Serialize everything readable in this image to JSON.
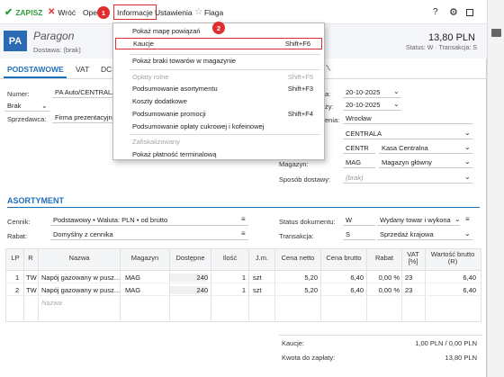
{
  "toolbar": {
    "save": "ZAPISZ",
    "back": "Wróć",
    "operations": "Opera",
    "information": "Informacje",
    "settings": "Ustawienia",
    "flag": "Flaga",
    "help": "?"
  },
  "badges": {
    "one": "1",
    "two": "2"
  },
  "header": {
    "code": "PA",
    "title": "Paragon",
    "subtitle": "Dostawa: (brak)",
    "amount": "13,80 PLN",
    "status": "Status: W · Transakcja: S"
  },
  "tabs": [
    "PODSTAWOWE",
    "VAT",
    "DC"
  ],
  "left_form": {
    "number_label": "Numer:",
    "number_value": "PA Auto/CENTRALA",
    "brak_value": "Brak",
    "seller_label": "Sprzedawca:",
    "seller_value": "Firma prezentacyjn"
  },
  "right_form": {
    "date1_label": "a:",
    "date1_value": "20-10-2025",
    "date2_label": "ży:",
    "date2_value": "20-10-2025",
    "place_label": "enia:",
    "place_value": "Wrocław",
    "row4_value": "CENTRALA",
    "row5_code": "CENTR",
    "row5_value": "Kasa Centralna",
    "store_label": "Magazyn:",
    "store_code": "MAG",
    "store_value": "Magazyn główny",
    "delivery_label": "Sposób dostawy:",
    "delivery_value": "(brak)"
  },
  "menu": {
    "items": [
      {
        "label": "Pokaż mapę powiązań",
        "shortcut": ""
      },
      {
        "label": "Kaucje",
        "shortcut": "Shift+F6"
      },
      {
        "label": "Pokaż braki towarów w magazynie",
        "shortcut": ""
      },
      {
        "label": "Opłaty rolne",
        "shortcut": "Shift+F5"
      },
      {
        "label": "Podsumowanie asortymentu",
        "shortcut": "Shift+F3"
      },
      {
        "label": "Koszty dodatkowe",
        "shortcut": ""
      },
      {
        "label": "Podsumowanie promocji",
        "shortcut": "Shift+F4"
      },
      {
        "label": "Podsumowanie opłaty cukrowej i kofeinowej",
        "shortcut": ""
      },
      {
        "label": "Zafiskalizowany",
        "shortcut": ""
      },
      {
        "label": "Pokaż płatność terminalową",
        "shortcut": ""
      }
    ]
  },
  "assortment": {
    "title": "ASORTYMENT",
    "pricelist_label": "Cennik:",
    "pricelist_value": "Podstawowy • Waluta: PLN • od brutto",
    "discount_label": "Rabat:",
    "discount_value": "Domyślny z cennika",
    "doc_status_label": "Status dokumentu:",
    "doc_status_code": "W",
    "doc_status_value": "Wydany towar i wykona",
    "transaction_label": "Transakcja:",
    "transaction_code": "S",
    "transaction_value": "Sprzedaż krajowa"
  },
  "table": {
    "headers": [
      "LP",
      "R",
      "Nazwa",
      "Magazyn",
      "Dostępne",
      "Ilość",
      "J.m.",
      "Cena netto",
      "Cena brutto",
      "Rabat",
      "VAT [%]",
      "Wartość brutto (R)"
    ],
    "rows": [
      [
        "1",
        "TW",
        "Napój gazowany w pusz...",
        "MAG",
        "240",
        "1",
        "szt",
        "5,20",
        "6,40",
        "0,00 %",
        "23",
        "6,40"
      ],
      [
        "2",
        "TW",
        "Napój gazowany w pusz...",
        "MAG",
        "240",
        "1",
        "szt",
        "5,20",
        "6,40",
        "0,00 %",
        "23",
        "6,40"
      ]
    ],
    "new_row_placeholder": "Nazwa"
  },
  "footer": {
    "deposit_label": "Kaucje:",
    "deposit_value": "1,00 PLN / 0,00 PLN",
    "pay_label": "Kwota do zapłaty:",
    "pay_value": "13,80 PLN"
  },
  "colors": {
    "accent": "#1f6fb8",
    "badge": "#e02d2d",
    "highlight": "#e02d2d",
    "save": "#2e9e3a"
  }
}
